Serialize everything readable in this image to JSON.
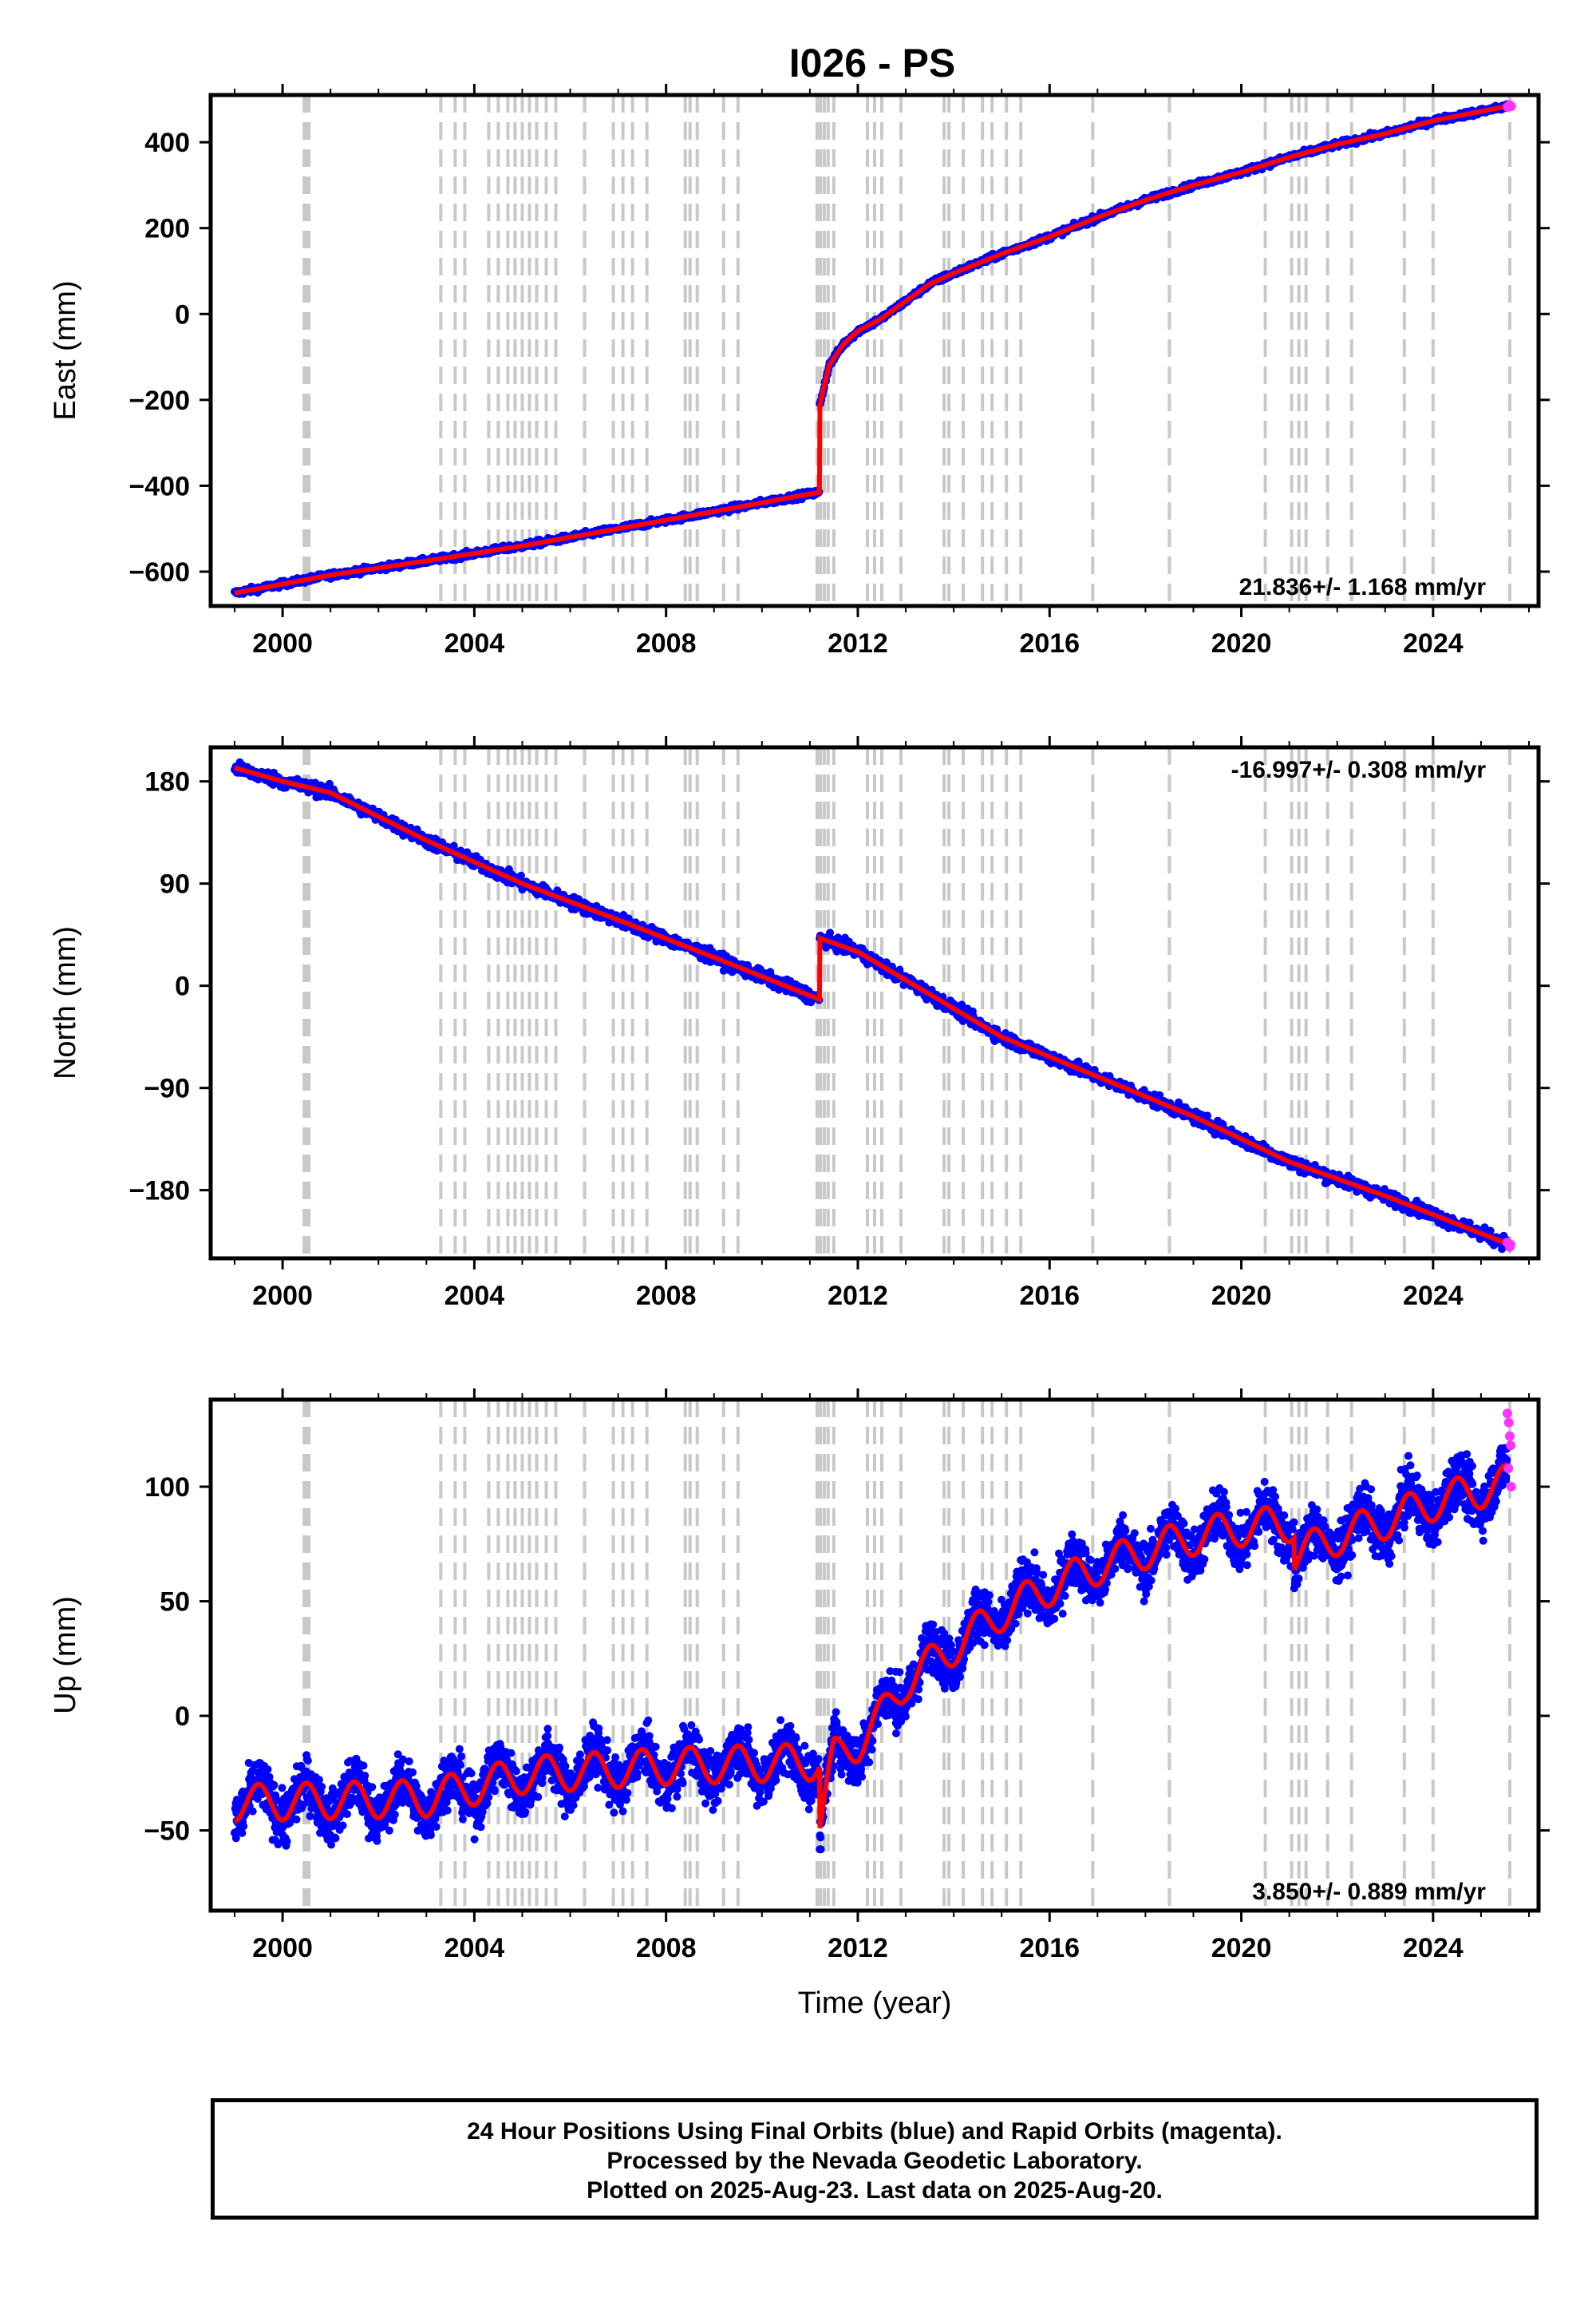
{
  "title": "I026 - PS",
  "colors": {
    "final_points": "#0000ff",
    "rapid_points": "#ff33ff",
    "model": "#ff0000",
    "events": "#c8c8c8"
  },
  "chart_data": [
    {
      "type": "scatter",
      "name": "east",
      "ylabel": "East (mm)",
      "xlabel": "",
      "xlim": [
        1998.5,
        2026.2
      ],
      "ylim": [
        -680,
        510
      ],
      "yticks": [
        400,
        200,
        0,
        -200,
        -400,
        -600
      ],
      "ytick_labels": [
        "400",
        "200",
        "0",
        "−200",
        "−400",
        "−600"
      ],
      "xticks": [
        2000,
        2004,
        2008,
        2012,
        2016,
        2020,
        2024
      ],
      "xtick_labels": [
        "2000",
        "2004",
        "2008",
        "2012",
        "2016",
        "2020",
        "2024"
      ],
      "rate_label": "21.836+/- 1.168 mm/yr",
      "rate_position": "bottom-right",
      "model": [
        [
          1999.0,
          -650
        ],
        [
          2001.0,
          -608
        ],
        [
          2003.0,
          -575
        ],
        [
          2005.0,
          -540
        ],
        [
          2007.0,
          -500
        ],
        [
          2009.0,
          -460
        ],
        [
          2011.2,
          -415
        ],
        [
          2011.2,
          -215
        ],
        [
          2011.4,
          -120
        ],
        [
          2011.7,
          -70
        ],
        [
          2012.0,
          -40
        ],
        [
          2012.5,
          -10
        ],
        [
          2013.0,
          30
        ],
        [
          2013.5,
          70
        ],
        [
          2014.0,
          95
        ],
        [
          2015.0,
          140
        ],
        [
          2016.0,
          180
        ],
        [
          2017.0,
          225
        ],
        [
          2018.0,
          265
        ],
        [
          2019.0,
          300
        ],
        [
          2020.0,
          330
        ],
        [
          2021.0,
          365
        ],
        [
          2022.0,
          395
        ],
        [
          2023.0,
          420
        ],
        [
          2024.0,
          450
        ],
        [
          2025.6,
          485
        ]
      ],
      "noise": 5,
      "seasonal": 0,
      "rapid_points": [
        [
          2025.55,
          482
        ],
        [
          2025.6,
          487
        ],
        [
          2025.63,
          484
        ]
      ]
    },
    {
      "type": "scatter",
      "name": "north",
      "ylabel": "North (mm)",
      "xlabel": "",
      "xlim": [
        1998.5,
        2026.2
      ],
      "ylim": [
        -240,
        210
      ],
      "yticks": [
        180,
        90,
        0,
        -90,
        -180
      ],
      "ytick_labels": [
        "180",
        "90",
        "0",
        "−90",
        "−180"
      ],
      "xticks": [
        2000,
        2004,
        2008,
        2012,
        2016,
        2020,
        2024
      ],
      "xtick_labels": [
        "2000",
        "2004",
        "2008",
        "2012",
        "2016",
        "2020",
        "2024"
      ],
      "rate_label": "-16.997+/- 0.308 mm/yr",
      "rate_position": "top-right",
      "model": [
        [
          1999.0,
          192
        ],
        [
          2000.0,
          180
        ],
        [
          2001.0,
          170
        ],
        [
          2003.0,
          128
        ],
        [
          2005.0,
          90
        ],
        [
          2007.0,
          58
        ],
        [
          2009.0,
          25
        ],
        [
          2011.2,
          -12
        ],
        [
          2011.2,
          42
        ],
        [
          2012.0,
          30
        ],
        [
          2013.0,
          5
        ],
        [
          2014.0,
          -20
        ],
        [
          2015.0,
          -45
        ],
        [
          2017.0,
          -80
        ],
        [
          2019.0,
          -115
        ],
        [
          2021.0,
          -155
        ],
        [
          2023.0,
          -185
        ],
        [
          2025.6,
          -228
        ]
      ],
      "noise": 4,
      "seasonal": 0,
      "rapid_points": [
        [
          2025.55,
          -226
        ],
        [
          2025.6,
          -230
        ],
        [
          2025.62,
          -228
        ]
      ]
    },
    {
      "type": "scatter",
      "name": "up",
      "ylabel": "Up (mm)",
      "xlabel": "Time (year)",
      "xlim": [
        1998.5,
        2026.2
      ],
      "ylim": [
        -85,
        138
      ],
      "yticks": [
        100,
        50,
        0,
        -50
      ],
      "ytick_labels": [
        "100",
        "50",
        "0",
        "−50"
      ],
      "xticks": [
        2000,
        2004,
        2008,
        2012,
        2016,
        2020,
        2024
      ],
      "xtick_labels": [
        "2000",
        "2004",
        "2008",
        "2012",
        "2016",
        "2020",
        "2024"
      ],
      "rate_label": "3.850+/- 0.889 mm/yr",
      "rate_position": "bottom-right",
      "model": [
        [
          1999.0,
          -38
        ],
        [
          2003.0,
          -36
        ],
        [
          2005.0,
          -26
        ],
        [
          2008.0,
          -22
        ],
        [
          2011.2,
          -20
        ],
        [
          2011.2,
          -48
        ],
        [
          2011.5,
          -18
        ],
        [
          2012.0,
          -12
        ],
        [
          2012.5,
          0
        ],
        [
          2013.0,
          15
        ],
        [
          2014.0,
          30
        ],
        [
          2015.0,
          45
        ],
        [
          2016.0,
          56
        ],
        [
          2017.0,
          65
        ],
        [
          2018.0,
          72
        ],
        [
          2019.0,
          78
        ],
        [
          2020.0,
          82
        ],
        [
          2021.1,
          84
        ],
        [
          2021.1,
          70
        ],
        [
          2022.0,
          78
        ],
        [
          2023.0,
          85
        ],
        [
          2024.0,
          93
        ],
        [
          2025.6,
          102
        ]
      ],
      "noise": 8,
      "seasonal": 8,
      "rapid_points": [
        [
          2025.55,
          132
        ],
        [
          2025.58,
          128
        ],
        [
          2025.6,
          122
        ],
        [
          2025.62,
          118
        ],
        [
          2025.57,
          108
        ],
        [
          2025.63,
          100
        ]
      ]
    }
  ],
  "event_years": [
    2000.45,
    2000.5,
    2000.55,
    2003.3,
    2003.6,
    2003.8,
    2004.3,
    2004.5,
    2004.7,
    2004.85,
    2005.0,
    2005.15,
    2005.3,
    2005.5,
    2005.7,
    2006.3,
    2006.9,
    2007.1,
    2007.3,
    2007.6,
    2008.4,
    2008.5,
    2008.65,
    2009.2,
    2009.5,
    2011.15,
    2011.22,
    2011.3,
    2011.38,
    2011.5,
    2012.2,
    2012.35,
    2012.5,
    2012.9,
    2013.8,
    2013.9,
    2014.2,
    2014.6,
    2014.8,
    2015.1,
    2015.4,
    2016.9,
    2018.5,
    2020.5,
    2021.05,
    2021.2,
    2021.35,
    2021.8,
    2022.3,
    2023.4,
    2024.0,
    2025.6
  ],
  "footer": {
    "line1": "24 Hour Positions Using Final Orbits (blue) and Rapid Orbits (magenta).",
    "line2": "Processed by the Nevada Geodetic Laboratory.",
    "line3": "Plotted on 2025-Aug-23. Last data on 2025-Aug-20."
  }
}
